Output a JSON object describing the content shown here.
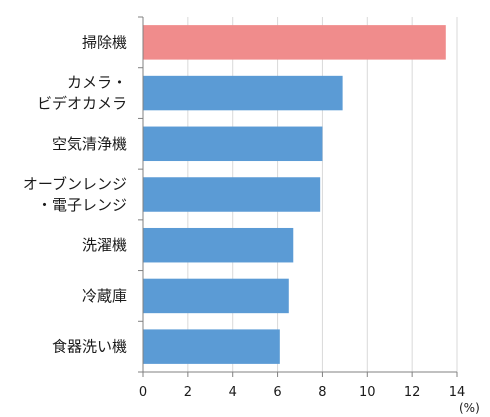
{
  "chart_data": {
    "type": "bar",
    "orientation": "horizontal",
    "categories": [
      [
        "掃除機"
      ],
      [
        "カメラ・",
        "ビデオカメラ"
      ],
      [
        "空気清浄機"
      ],
      [
        "オーブンレンジ",
        "・電子レンジ"
      ],
      [
        "洗濯機"
      ],
      [
        "冷蔵庫"
      ],
      [
        "食器洗い機"
      ]
    ],
    "values": [
      13.5,
      8.9,
      8.0,
      7.9,
      6.7,
      6.5,
      6.1
    ],
    "bar_colors": [
      "#f08c8c",
      "#5b9bd5",
      "#5b9bd5",
      "#5b9bd5",
      "#5b9bd5",
      "#5b9bd5",
      "#5b9bd5"
    ],
    "xlim": [
      0,
      14
    ],
    "xticks": [
      0,
      2,
      4,
      6,
      8,
      10,
      12,
      14
    ],
    "x_unit": "(%)",
    "grid": true,
    "title": "",
    "xlabel": "",
    "ylabel": ""
  }
}
